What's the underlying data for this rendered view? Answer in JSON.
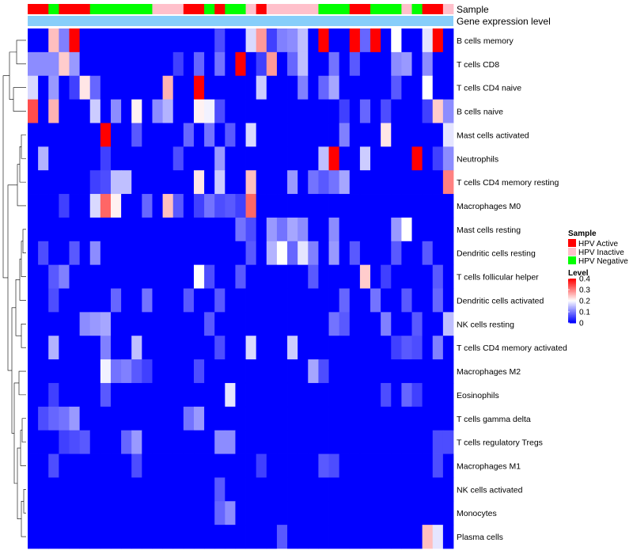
{
  "chart_data": {
    "type": "heatmap",
    "annotation_labels": [
      "Sample",
      "Gene expression level"
    ],
    "rows": [
      "B cells memory",
      "T cells CD8",
      "T cells CD4 naive",
      "B cells naive",
      "Mast cells activated",
      "Neutrophils",
      "T cells CD4 memory resting",
      "Macrophages M0",
      "Mast cells resting",
      "Dendritic cells resting",
      "T cells follicular helper",
      "Dendritic cells activated",
      "NK cells resting",
      "T cells CD4 memory activated",
      "Macrophages M2",
      "Eosinophils",
      "T cells gamma delta",
      "T cells regulatory  Tregs",
      "Macrophages M1",
      "NK cells activated",
      "Monocytes",
      "Plasma cells"
    ],
    "sample_groups": [
      "HPV Active",
      "HPV Active",
      "HPV Negative",
      "HPV Active",
      "HPV Active",
      "HPV Active",
      "HPV Negative",
      "HPV Negative",
      "HPV Negative",
      "HPV Negative",
      "HPV Negative",
      "HPV Negative",
      "HPV Inactive",
      "HPV Inactive",
      "HPV Inactive",
      "HPV Active",
      "HPV Active",
      "HPV Negative",
      "HPV Active",
      "HPV Negative",
      "HPV Negative",
      "HPV Inactive",
      "HPV Active",
      "HPV Inactive",
      "HPV Inactive",
      "HPV Inactive",
      "HPV Inactive",
      "HPV Inactive",
      "HPV Negative",
      "HPV Negative",
      "HPV Negative",
      "HPV Active",
      "HPV Active",
      "HPV Negative",
      "HPV Negative",
      "HPV Negative",
      "HPV Inactive",
      "HPV Negative",
      "HPV Active",
      "HPV Active",
      "HPV Inactive"
    ],
    "values": [
      [
        0.0,
        0.0,
        0.25,
        0.1,
        0.4,
        0.0,
        0.0,
        0.0,
        0.0,
        0.0,
        0.0,
        0.0,
        0.0,
        0.0,
        0.0,
        0.0,
        0.0,
        0.0,
        0.06,
        0.0,
        0.0,
        0.17,
        0.28,
        0.05,
        0.1,
        0.11,
        0.15,
        0.0,
        0.4,
        0.0,
        0.0,
        0.4,
        0.08,
        0.4,
        0.0,
        0.2,
        0.0,
        0.0,
        0.18,
        0.4,
        0.0
      ],
      [
        0.11,
        0.11,
        0.11,
        0.24,
        0.12,
        0.0,
        0.0,
        0.0,
        0.0,
        0.0,
        0.0,
        0.0,
        0.0,
        0.0,
        0.05,
        0.0,
        0.08,
        0.0,
        0.09,
        0.0,
        0.4,
        0.0,
        0.05,
        0.28,
        0.0,
        0.08,
        0.15,
        0.0,
        0.0,
        0.09,
        0.0,
        0.07,
        0.0,
        0.0,
        0.0,
        0.11,
        0.12,
        0.0,
        0.11,
        0.0,
        0.0
      ],
      [
        0.17,
        0.0,
        0.12,
        0.0,
        0.05,
        0.22,
        0.08,
        0.0,
        0.0,
        0.0,
        0.0,
        0.0,
        0.0,
        0.26,
        0.0,
        0.0,
        0.4,
        0.0,
        0.0,
        0.0,
        0.0,
        0.0,
        0.16,
        0.0,
        0.0,
        0.0,
        0.1,
        0.0,
        0.08,
        0.13,
        0.0,
        0.0,
        0.0,
        0.0,
        0.0,
        0.07,
        0.0,
        0.0,
        0.2,
        0.0,
        0.0
      ],
      [
        0.34,
        0.0,
        0.26,
        0.0,
        0.0,
        0.0,
        0.16,
        0.0,
        0.11,
        0.0,
        0.21,
        0.0,
        0.11,
        0.14,
        0.0,
        0.0,
        0.21,
        0.19,
        0.06,
        0.0,
        0.0,
        0.0,
        0.0,
        0.0,
        0.0,
        0.0,
        0.0,
        0.0,
        0.0,
        0.0,
        0.05,
        0.0,
        0.08,
        0.0,
        0.06,
        0.0,
        0.0,
        0.0,
        0.05,
        0.24,
        0.11
      ],
      [
        0.0,
        0.0,
        0.0,
        0.0,
        0.0,
        0.0,
        0.0,
        0.4,
        0.0,
        0.0,
        0.07,
        0.0,
        0.0,
        0.0,
        0.0,
        0.08,
        0.0,
        0.09,
        0.0,
        0.07,
        0.0,
        0.17,
        0.0,
        0.0,
        0.0,
        0.0,
        0.0,
        0.0,
        0.0,
        0.0,
        0.1,
        0.0,
        0.0,
        0.0,
        0.22,
        0.0,
        0.0,
        0.0,
        0.0,
        0.0,
        0.18
      ],
      [
        0.0,
        0.14,
        0.0,
        0.0,
        0.0,
        0.0,
        0.0,
        0.05,
        0.0,
        0.0,
        0.0,
        0.0,
        0.0,
        0.0,
        0.06,
        0.0,
        0.0,
        0.0,
        0.12,
        0.0,
        0.0,
        0.0,
        0.0,
        0.0,
        0.0,
        0.0,
        0.0,
        0.0,
        0.15,
        0.4,
        0.0,
        0.0,
        0.16,
        0.0,
        0.0,
        0.0,
        0.0,
        0.4,
        0.0,
        0.05,
        0.11
      ],
      [
        0.0,
        0.0,
        0.0,
        0.0,
        0.0,
        0.0,
        0.05,
        0.06,
        0.15,
        0.15,
        0.0,
        0.0,
        0.0,
        0.0,
        0.0,
        0.0,
        0.22,
        0.0,
        0.16,
        0.0,
        0.0,
        0.25,
        0.0,
        0.0,
        0.0,
        0.12,
        0.0,
        0.09,
        0.07,
        0.09,
        0.13,
        0.0,
        0.0,
        0.0,
        0.0,
        0.0,
        0.0,
        0.0,
        0.0,
        0.0,
        0.3
      ],
      [
        0.0,
        0.0,
        0.0,
        0.05,
        0.0,
        0.0,
        0.17,
        0.32,
        0.21,
        0.0,
        0.0,
        0.08,
        0.0,
        0.25,
        0.07,
        0.0,
        0.05,
        0.09,
        0.06,
        0.07,
        0.05,
        0.32,
        0.0,
        0.0,
        0.0,
        0.0,
        0.0,
        0.0,
        0.0,
        0.0,
        0.0,
        0.0,
        0.0,
        0.0,
        0.0,
        0.0,
        0.0,
        0.0,
        0.0,
        0.0,
        0.0
      ],
      [
        0.0,
        0.0,
        0.0,
        0.0,
        0.0,
        0.0,
        0.0,
        0.0,
        0.0,
        0.0,
        0.0,
        0.0,
        0.0,
        0.0,
        0.0,
        0.0,
        0.0,
        0.0,
        0.0,
        0.0,
        0.09,
        0.06,
        0.0,
        0.12,
        0.09,
        0.13,
        0.11,
        0.0,
        0.0,
        0.11,
        0.0,
        0.0,
        0.0,
        0.0,
        0.0,
        0.12,
        0.2,
        0.0,
        0.0,
        0.0,
        0.0
      ],
      [
        0.0,
        0.06,
        0.0,
        0.0,
        0.07,
        0.0,
        0.11,
        0.0,
        0.0,
        0.0,
        0.0,
        0.0,
        0.0,
        0.0,
        0.0,
        0.0,
        0.0,
        0.0,
        0.0,
        0.0,
        0.0,
        0.07,
        0.0,
        0.14,
        0.2,
        0.08,
        0.18,
        0.1,
        0.0,
        0.12,
        0.0,
        0.07,
        0.0,
        0.0,
        0.0,
        0.07,
        0.0,
        0.0,
        0.07,
        0.0,
        0.0
      ],
      [
        0.0,
        0.0,
        0.07,
        0.1,
        0.0,
        0.0,
        0.0,
        0.0,
        0.0,
        0.0,
        0.0,
        0.0,
        0.0,
        0.0,
        0.0,
        0.0,
        0.2,
        0.06,
        0.0,
        0.0,
        0.07,
        0.0,
        0.0,
        0.0,
        0.0,
        0.0,
        0.0,
        0.07,
        0.0,
        0.0,
        0.0,
        0.0,
        0.24,
        0.0,
        0.05,
        0.0,
        0.0,
        0.0,
        0.0,
        0.07,
        0.0
      ],
      [
        0.0,
        0.0,
        0.06,
        0.0,
        0.0,
        0.0,
        0.0,
        0.0,
        0.08,
        0.0,
        0.0,
        0.09,
        0.0,
        0.0,
        0.0,
        0.07,
        0.0,
        0.0,
        0.07,
        0.0,
        0.0,
        0.0,
        0.0,
        0.0,
        0.0,
        0.0,
        0.0,
        0.0,
        0.0,
        0.0,
        0.08,
        0.0,
        0.0,
        0.09,
        0.0,
        0.0,
        0.07,
        0.0,
        0.0,
        0.08,
        0.0
      ],
      [
        0.0,
        0.0,
        0.0,
        0.0,
        0.0,
        0.11,
        0.12,
        0.13,
        0.0,
        0.0,
        0.0,
        0.0,
        0.0,
        0.0,
        0.0,
        0.0,
        0.0,
        0.07,
        0.0,
        0.0,
        0.0,
        0.0,
        0.0,
        0.0,
        0.0,
        0.0,
        0.0,
        0.0,
        0.0,
        0.09,
        0.07,
        0.0,
        0.0,
        0.0,
        0.1,
        0.0,
        0.0,
        0.07,
        0.0,
        0.0,
        0.15
      ],
      [
        0.0,
        0.0,
        0.14,
        0.0,
        0.0,
        0.0,
        0.0,
        0.1,
        0.0,
        0.0,
        0.15,
        0.0,
        0.0,
        0.0,
        0.0,
        0.0,
        0.0,
        0.0,
        0.06,
        0.0,
        0.0,
        0.17,
        0.0,
        0.0,
        0.0,
        0.16,
        0.0,
        0.0,
        0.0,
        0.0,
        0.0,
        0.0,
        0.0,
        0.0,
        0.0,
        0.05,
        0.07,
        0.06,
        0.0,
        0.1,
        0.0
      ],
      [
        0.0,
        0.0,
        0.0,
        0.0,
        0.0,
        0.0,
        0.0,
        0.19,
        0.09,
        0.1,
        0.07,
        0.05,
        0.0,
        0.0,
        0.0,
        0.0,
        0.06,
        0.0,
        0.0,
        0.0,
        0.0,
        0.0,
        0.0,
        0.0,
        0.0,
        0.0,
        0.0,
        0.13,
        0.06,
        0.0,
        0.0,
        0.0,
        0.0,
        0.0,
        0.0,
        0.0,
        0.0,
        0.0,
        0.0,
        0.0,
        0.0
      ],
      [
        0.0,
        0.0,
        0.05,
        0.0,
        0.0,
        0.0,
        0.0,
        0.07,
        0.0,
        0.0,
        0.0,
        0.0,
        0.0,
        0.0,
        0.0,
        0.0,
        0.0,
        0.0,
        0.0,
        0.18,
        0.0,
        0.0,
        0.0,
        0.0,
        0.0,
        0.0,
        0.0,
        0.0,
        0.0,
        0.0,
        0.0,
        0.0,
        0.0,
        0.0,
        0.06,
        0.0,
        0.08,
        0.05,
        0.0,
        0.0,
        0.0
      ],
      [
        0.0,
        0.06,
        0.08,
        0.09,
        0.12,
        0.0,
        0.0,
        0.0,
        0.0,
        0.0,
        0.0,
        0.0,
        0.0,
        0.0,
        0.0,
        0.09,
        0.12,
        0.0,
        0.0,
        0.0,
        0.0,
        0.0,
        0.0,
        0.0,
        0.0,
        0.0,
        0.0,
        0.0,
        0.0,
        0.0,
        0.0,
        0.0,
        0.0,
        0.0,
        0.0,
        0.0,
        0.0,
        0.0,
        0.0,
        0.0,
        0.0
      ],
      [
        0.0,
        0.0,
        0.0,
        0.05,
        0.06,
        0.07,
        0.0,
        0.0,
        0.0,
        0.08,
        0.12,
        0.0,
        0.0,
        0.0,
        0.0,
        0.0,
        0.0,
        0.0,
        0.11,
        0.11,
        0.0,
        0.0,
        0.0,
        0.0,
        0.0,
        0.0,
        0.0,
        0.0,
        0.0,
        0.0,
        0.0,
        0.0,
        0.0,
        0.0,
        0.0,
        0.0,
        0.0,
        0.0,
        0.0,
        0.06,
        0.06
      ],
      [
        0.0,
        0.0,
        0.06,
        0.0,
        0.0,
        0.0,
        0.0,
        0.0,
        0.0,
        0.0,
        0.06,
        0.0,
        0.0,
        0.0,
        0.0,
        0.0,
        0.0,
        0.0,
        0.0,
        0.0,
        0.0,
        0.0,
        0.05,
        0.0,
        0.0,
        0.0,
        0.0,
        0.0,
        0.07,
        0.06,
        0.0,
        0.0,
        0.0,
        0.0,
        0.0,
        0.0,
        0.0,
        0.0,
        0.0,
        0.06,
        0.0
      ],
      [
        0.0,
        0.0,
        0.0,
        0.0,
        0.0,
        0.0,
        0.0,
        0.0,
        0.0,
        0.0,
        0.0,
        0.0,
        0.0,
        0.0,
        0.0,
        0.0,
        0.0,
        0.0,
        0.07,
        0.0,
        0.0,
        0.0,
        0.0,
        0.0,
        0.0,
        0.0,
        0.0,
        0.0,
        0.0,
        0.0,
        0.0,
        0.0,
        0.0,
        0.0,
        0.0,
        0.0,
        0.0,
        0.0,
        0.0,
        0.0,
        0.0
      ],
      [
        0.0,
        0.0,
        0.0,
        0.0,
        0.0,
        0.0,
        0.0,
        0.0,
        0.0,
        0.0,
        0.0,
        0.0,
        0.0,
        0.0,
        0.0,
        0.0,
        0.0,
        0.0,
        0.08,
        0.11,
        0.0,
        0.0,
        0.0,
        0.0,
        0.0,
        0.0,
        0.0,
        0.0,
        0.0,
        0.0,
        0.0,
        0.0,
        0.0,
        0.0,
        0.0,
        0.0,
        0.0,
        0.0,
        0.0,
        0.0,
        0.0
      ],
      [
        0.0,
        0.0,
        0.0,
        0.0,
        0.0,
        0.0,
        0.0,
        0.0,
        0.0,
        0.0,
        0.0,
        0.0,
        0.0,
        0.0,
        0.0,
        0.0,
        0.0,
        0.0,
        0.0,
        0.0,
        0.0,
        0.0,
        0.0,
        0.0,
        0.07,
        0.0,
        0.0,
        0.0,
        0.0,
        0.0,
        0.0,
        0.0,
        0.0,
        0.0,
        0.0,
        0.0,
        0.0,
        0.0,
        0.25,
        0.18,
        0.0
      ]
    ],
    "color_scale": {
      "low": "#0000ff",
      "mid": "#ffffff",
      "high": "#ff0000",
      "domain": [
        0,
        0.4
      ]
    },
    "legend_sample": {
      "title": "Sample",
      "items": [
        {
          "label": "HPV Active",
          "color": "#ff0000"
        },
        {
          "label": "HPV Inactive",
          "color": "#ffc0cb"
        },
        {
          "label": "HPV Negative",
          "color": "#00ff00"
        }
      ]
    },
    "legend_level": {
      "title": "Level",
      "ticks": [
        "0.4",
        "0.3",
        "0.2",
        "0.1",
        "0"
      ],
      "tick_values": [
        0.4,
        0.3,
        0.2,
        0.1,
        0
      ]
    },
    "gene_expression_bar_color": "#87cefa",
    "legend_placement": "right"
  }
}
